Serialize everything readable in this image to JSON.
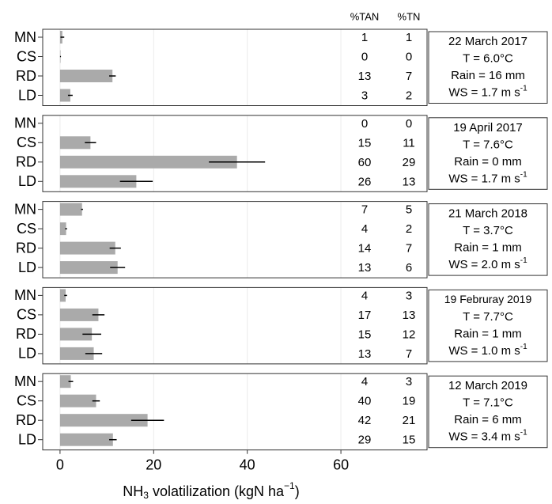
{
  "chart_data": {
    "type": "bar",
    "orientation": "horizontal",
    "color": "#aaaaaa",
    "grid": true,
    "xlim": [
      -3.7,
      78.4
    ],
    "xticks": [
      0,
      20,
      40,
      60
    ],
    "xlabel": [
      "NH",
      "3",
      " volatilization (kgN ha",
      "−1",
      ")"
    ],
    "columns": [
      "%TAN",
      "%TN"
    ],
    "panels": [
      {
        "categories": [
          "MN",
          "CS",
          "RD",
          "LD"
        ],
        "values": [
          0.5,
          0.1,
          11.2,
          2.2
        ],
        "errors": [
          0.4,
          0.1,
          0.7,
          0.5
        ],
        "tan": [
          1,
          0,
          13,
          3
        ],
        "tn": [
          1,
          0,
          7,
          2
        ],
        "annotation": [
          "22 March 2017",
          "T = 6.0°C",
          "Rain = 16 mm",
          "WS = 1.7 m s"
        ],
        "annotation_sup": "-1"
      },
      {
        "categories": [
          "MN",
          "CS",
          "RD",
          "LD"
        ],
        "values": [
          0,
          6.5,
          37.8,
          16.3
        ],
        "errors": [
          0,
          1.2,
          6,
          3.5
        ],
        "tan": [
          0,
          15,
          60,
          26
        ],
        "tn": [
          0,
          11,
          29,
          13
        ],
        "annotation": [
          "19 April 2017",
          "T = 7.6°C",
          "Rain = 0 mm",
          "WS = 1.7 m s"
        ],
        "annotation_sup": "-1"
      },
      {
        "categories": [
          "MN",
          "CS",
          "RD",
          "LD"
        ],
        "values": [
          4.7,
          1.3,
          11.8,
          12.3
        ],
        "errors": [
          0.2,
          0.2,
          1.2,
          1.6
        ],
        "tan": [
          7,
          4,
          14,
          13
        ],
        "tn": [
          5,
          2,
          7,
          6
        ],
        "annotation": [
          "21 March 2018",
          "T = 3.7°C",
          "Rain = 1 mm",
          "WS = 2.0 m s"
        ],
        "annotation_sup": "-1"
      },
      {
        "categories": [
          "MN",
          "CS",
          "RD",
          "LD"
        ],
        "values": [
          1.2,
          8.2,
          6.8,
          7.2
        ],
        "errors": [
          0.3,
          1.3,
          2,
          1.8
        ],
        "tan": [
          4,
          17,
          15,
          13
        ],
        "tn": [
          3,
          13,
          12,
          7
        ],
        "annotation": [
          "19 Februray 2019",
          "T = 7.7°C",
          "Rain = 1 mm",
          "WS = 1.0 m s"
        ],
        "annotation_sup": "-1"
      },
      {
        "categories": [
          "MN",
          "CS",
          "RD",
          "LD"
        ],
        "values": [
          2.3,
          7.7,
          18.7,
          11.3
        ],
        "errors": [
          0.5,
          0.8,
          3.5,
          0.8
        ],
        "tan": [
          4,
          40,
          42,
          29
        ],
        "tn": [
          3,
          19,
          21,
          15
        ],
        "annotation": [
          "12 March 2019",
          "T = 7.1°C",
          "Rain = 6 mm",
          "WS = 3.4 m s"
        ],
        "annotation_sup": "-1"
      }
    ]
  }
}
